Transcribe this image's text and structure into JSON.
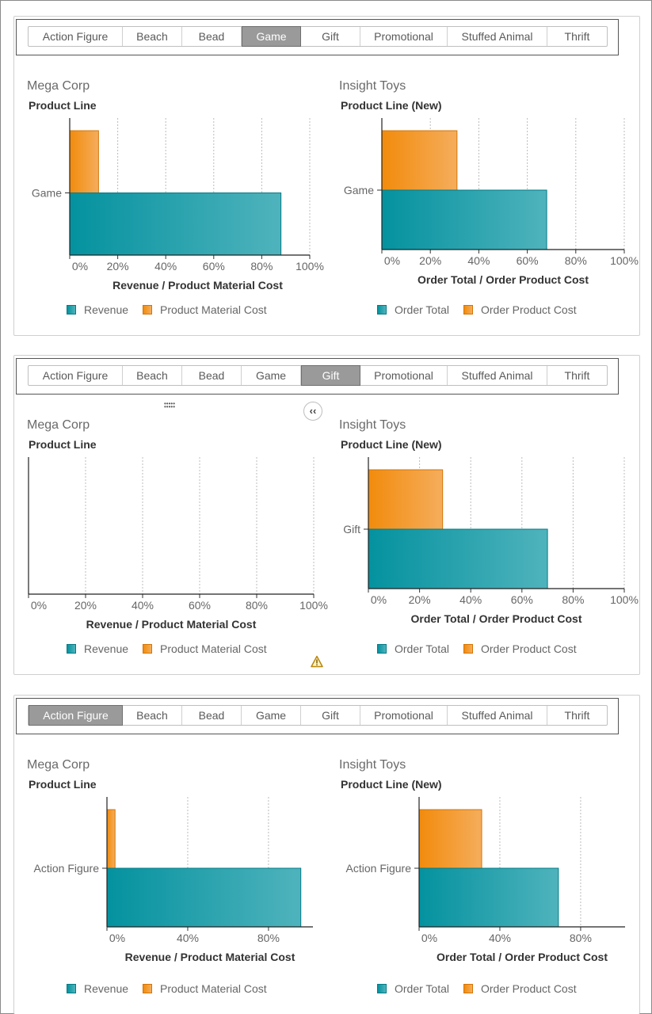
{
  "tabs": [
    "Action Figure",
    "Beach",
    "Bead",
    "Game",
    "Gift",
    "Promotional",
    "Stuffed Animal",
    "Thrift"
  ],
  "colors": {
    "revenue_start": "#04929f",
    "revenue_end": "#4fb3bc",
    "cost_start": "#f28b0c",
    "cost_end": "#f5ad5c",
    "tab_active_bg": "#9a9a9a"
  },
  "icons": {
    "collapse": "double-chevron-left-icon",
    "warning": "warning-triangle-icon",
    "grip": "drag-grip-icon"
  },
  "panels": [
    {
      "active_tab": "Game",
      "charts": [
        {
          "company": "Mega Corp",
          "chart_data": {
            "type": "bar",
            "orientation": "horizontal",
            "ylabel": "Product Line",
            "xlabel": "Revenue / Product Material Cost",
            "categories": [
              "Game"
            ],
            "series": [
              {
                "name": "Revenue",
                "values": [
                  88
                ]
              },
              {
                "name": "Product Material Cost",
                "values": [
                  12
                ]
              }
            ],
            "x_ticks": [
              "0%",
              "20%",
              "40%",
              "60%",
              "80%",
              "100%"
            ],
            "xlim": [
              0,
              100
            ],
            "grid": true,
            "legend": "bottom"
          }
        },
        {
          "company": "Insight Toys",
          "chart_data": {
            "type": "bar",
            "orientation": "horizontal",
            "ylabel": "Product Line (New)",
            "xlabel": "Order Total / Order Product Cost",
            "categories": [
              "Game"
            ],
            "series": [
              {
                "name": "Order Total",
                "values": [
                  68
                ]
              },
              {
                "name": "Order Product Cost",
                "values": [
                  31
                ]
              }
            ],
            "x_ticks": [
              "0%",
              "20%",
              "40%",
              "60%",
              "80%",
              "100%"
            ],
            "xlim": [
              0,
              100
            ],
            "grid": true,
            "legend": "bottom"
          }
        }
      ]
    },
    {
      "active_tab": "Gift",
      "charts": [
        {
          "company": "Mega Corp",
          "chart_data": {
            "type": "bar",
            "orientation": "horizontal",
            "ylabel": "Product Line",
            "xlabel": "Revenue / Product Material Cost",
            "categories": [],
            "series": [
              {
                "name": "Revenue",
                "values": []
              },
              {
                "name": "Product Material Cost",
                "values": []
              }
            ],
            "x_ticks": [
              "0%",
              "20%",
              "40%",
              "60%",
              "80%",
              "100%"
            ],
            "xlim": [
              0,
              100
            ],
            "grid": true,
            "legend": "bottom"
          }
        },
        {
          "company": "Insight Toys",
          "chart_data": {
            "type": "bar",
            "orientation": "horizontal",
            "ylabel": "Product Line (New)",
            "xlabel": "Order Total / Order Product Cost",
            "categories": [
              "Gift"
            ],
            "series": [
              {
                "name": "Order Total",
                "values": [
                  70
                ]
              },
              {
                "name": "Order Product Cost",
                "values": [
                  29
                ]
              }
            ],
            "x_ticks": [
              "0%",
              "20%",
              "40%",
              "60%",
              "80%",
              "100%"
            ],
            "xlim": [
              0,
              100
            ],
            "grid": true,
            "legend": "bottom"
          }
        }
      ]
    },
    {
      "active_tab": "Action Figure",
      "charts": [
        {
          "company": "Mega Corp",
          "chart_data": {
            "type": "bar",
            "orientation": "horizontal",
            "ylabel": "Product Line",
            "xlabel": "Revenue / Product Material Cost",
            "categories": [
              "Action Figure"
            ],
            "series": [
              {
                "name": "Revenue",
                "values": [
                  96
                ]
              },
              {
                "name": "Product Material Cost",
                "values": [
                  4
                ]
              }
            ],
            "x_ticks": [
              "0%",
              "40%",
              "80%"
            ],
            "xlim": [
              0,
              102
            ],
            "grid": true,
            "legend": "bottom"
          }
        },
        {
          "company": "Insight Toys",
          "chart_data": {
            "type": "bar",
            "orientation": "horizontal",
            "ylabel": "Product Line (New)",
            "xlabel": "Order Total / Order Product Cost",
            "categories": [
              "Action Figure"
            ],
            "series": [
              {
                "name": "Order Total",
                "values": [
                  69
                ]
              },
              {
                "name": "Order Product Cost",
                "values": [
                  31
                ]
              }
            ],
            "x_ticks": [
              "0%",
              "40%",
              "80%"
            ],
            "xlim": [
              0,
              102
            ],
            "grid": true,
            "legend": "bottom"
          }
        }
      ]
    }
  ]
}
